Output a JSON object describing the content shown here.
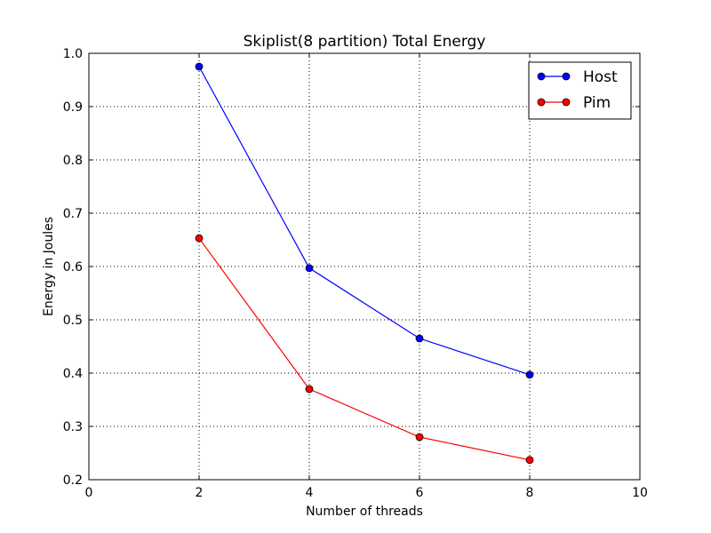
{
  "chart_data": {
    "type": "line",
    "title": "Skiplist(8 partition) Total Energy",
    "xlabel": "Number of threads",
    "ylabel": "Energy in Joules",
    "xlim": [
      0,
      10
    ],
    "ylim": [
      0.2,
      1.0
    ],
    "xticks": [
      "0",
      "2",
      "4",
      "6",
      "8",
      "10"
    ],
    "yticks": [
      "0.2",
      "0.3",
      "0.4",
      "0.5",
      "0.6",
      "0.7",
      "0.8",
      "0.9",
      "1.0"
    ],
    "grid": true,
    "legend_position": "top-right",
    "x": [
      2,
      4,
      6,
      8
    ],
    "series": [
      {
        "name": "Host",
        "color": "#0000ff",
        "marker": "circle",
        "values": [
          0.975,
          0.597,
          0.465,
          0.397
        ]
      },
      {
        "name": "Pim",
        "color": "#ff0000",
        "marker": "circle",
        "values": [
          0.653,
          0.37,
          0.28,
          0.237
        ]
      }
    ]
  }
}
